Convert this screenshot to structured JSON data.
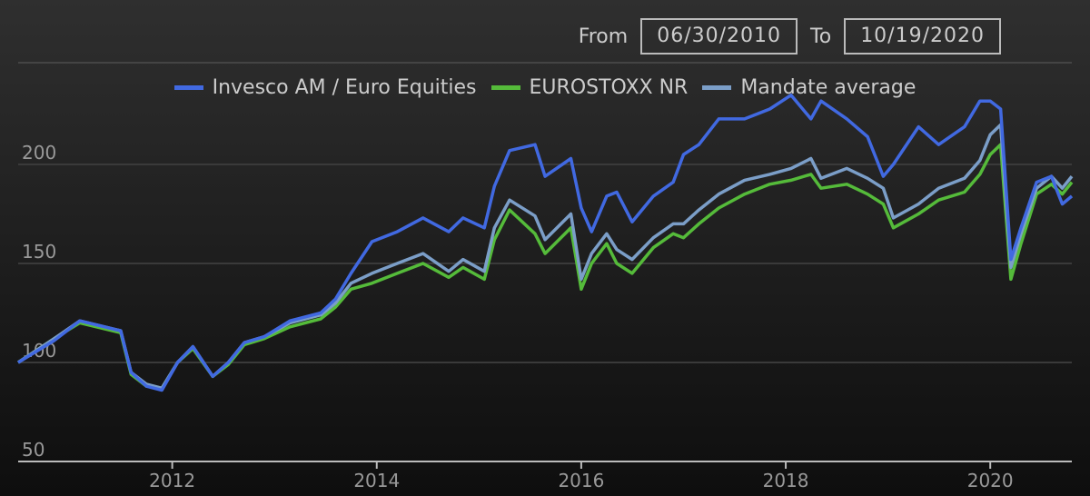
{
  "range": {
    "from_label": "From",
    "from_value": "06/30/2010",
    "to_label": "To",
    "to_value": "10/19/2020"
  },
  "colors": {
    "invesco": "#4169e1",
    "eurostoxx": "#55bb3a",
    "mandate": "#7b9ec8",
    "grid": "#3a3a3a",
    "axis": "#bbbbbb"
  },
  "chart_data": {
    "type": "line",
    "legend_position": "top-center",
    "grid": true,
    "ylim": [
      50,
      250
    ],
    "xlim": [
      "2010-06-30",
      "2020-10-19"
    ],
    "y_ticks": [
      "50",
      "100",
      "150",
      "200"
    ],
    "x_ticks": [
      "2012",
      "2014",
      "2016",
      "2018",
      "2020"
    ],
    "x": [
      "2010-06-30",
      "2010-11-05",
      "2011-02-05",
      "2011-07-01",
      "2011-08-07",
      "2011-10-01",
      "2011-11-25",
      "2012-01-20",
      "2012-03-15",
      "2012-05-25",
      "2012-07-20",
      "2012-09-15",
      "2012-11-25",
      "2013-02-25",
      "2013-06-15",
      "2013-08-07",
      "2013-10-01",
      "2013-12-15",
      "2014-03-15",
      "2014-06-15",
      "2014-09-15",
      "2014-11-05",
      "2015-01-20",
      "2015-02-25",
      "2015-04-20",
      "2015-07-20",
      "2015-08-25",
      "2015-11-25",
      "2016-01-01",
      "2016-02-07",
      "2016-04-01",
      "2016-05-07",
      "2016-07-01",
      "2016-09-15",
      "2016-11-25",
      "2017-01-01",
      "2017-02-25",
      "2017-05-07",
      "2017-08-07",
      "2017-11-05",
      "2018-01-20",
      "2018-04-01",
      "2018-05-07",
      "2018-08-07",
      "2018-10-20",
      "2018-12-15",
      "2019-01-20",
      "2019-04-20",
      "2019-07-01",
      "2019-10-01",
      "2019-11-25",
      "2020-01-01",
      "2020-02-07",
      "2020-03-15",
      "2020-04-20",
      "2020-06-15",
      "2020-08-07",
      "2020-09-15",
      "2020-10-19"
    ],
    "series": [
      {
        "name": "Invesco AM / Euro Equities",
        "color": "#4169e1",
        "values": [
          100,
          111,
          121,
          116,
          95,
          88,
          86,
          100,
          108,
          93,
          100,
          110,
          113,
          121,
          125,
          132,
          145,
          161,
          166,
          173,
          166,
          173,
          168,
          189,
          207,
          210,
          194,
          203,
          178,
          166,
          184,
          186,
          171,
          184,
          191,
          205,
          210,
          223,
          223,
          228,
          235,
          223,
          232,
          223,
          214,
          194,
          200,
          219,
          210,
          219,
          232,
          232,
          228,
          152,
          168,
          191,
          194,
          180,
          184
        ]
      },
      {
        "name": "EUROSTOXX NR",
        "color": "#55bb3a",
        "values": [
          100,
          112,
          120,
          115,
          94,
          88,
          87,
          100,
          107,
          93,
          99,
          109,
          112,
          118,
          122,
          128,
          137,
          140,
          145,
          150,
          143,
          148,
          142,
          162,
          177,
          165,
          155,
          168,
          137,
          150,
          160,
          150,
          145,
          158,
          165,
          163,
          170,
          178,
          185,
          190,
          192,
          195,
          188,
          190,
          185,
          180,
          168,
          175,
          182,
          186,
          195,
          205,
          210,
          142,
          160,
          185,
          190,
          185,
          191
        ]
      },
      {
        "name": "Mandate average",
        "color": "#7b9ec8",
        "values": [
          100,
          112,
          121,
          116,
          95,
          89,
          87,
          100,
          108,
          93,
          100,
          110,
          113,
          120,
          124,
          130,
          140,
          145,
          150,
          155,
          146,
          152,
          146,
          168,
          182,
          174,
          162,
          175,
          142,
          155,
          165,
          157,
          152,
          163,
          170,
          170,
          177,
          185,
          192,
          195,
          198,
          203,
          193,
          198,
          193,
          188,
          173,
          180,
          188,
          193,
          202,
          215,
          220,
          148,
          165,
          188,
          194,
          188,
          194
        ]
      }
    ]
  }
}
